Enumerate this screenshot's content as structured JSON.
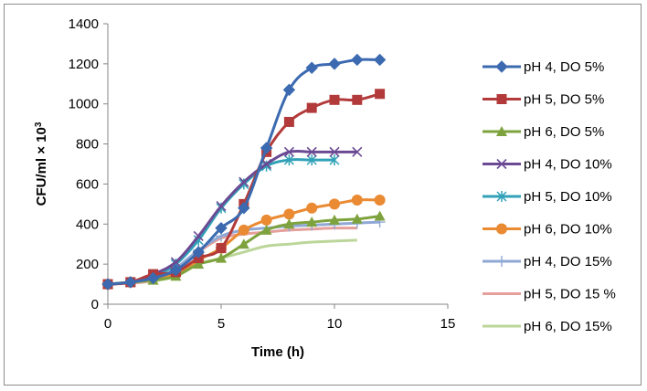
{
  "chart_data": {
    "type": "line",
    "title": "",
    "xlabel": "Time (h)",
    "ylabel_main": "CFU/ml × 10",
    "ylabel_exp": "3",
    "xlim": [
      0,
      15
    ],
    "ylim": [
      0,
      1400
    ],
    "xticks": [
      0,
      5,
      10,
      15
    ],
    "yticks": [
      0,
      200,
      400,
      600,
      800,
      1000,
      1200,
      1400
    ],
    "grid": false,
    "legend_position": "right",
    "series": [
      {
        "name": "pH 4, DO 5%",
        "color": "#3c6ab0",
        "marker": "diamond",
        "x": [
          0,
          1,
          2,
          3,
          4,
          5,
          6,
          7,
          8,
          9,
          10,
          11,
          12
        ],
        "y": [
          100,
          110,
          130,
          170,
          260,
          380,
          480,
          780,
          1070,
          1180,
          1200,
          1220,
          1220
        ]
      },
      {
        "name": "pH 5, DO 5%",
        "color": "#b33a3a",
        "marker": "square",
        "x": [
          0,
          1,
          2,
          3,
          4,
          5,
          6,
          7,
          8,
          9,
          10,
          11,
          12
        ],
        "y": [
          100,
          110,
          150,
          160,
          230,
          280,
          500,
          760,
          910,
          980,
          1020,
          1020,
          1050
        ]
      },
      {
        "name": "pH 6, DO 5%",
        "color": "#7ea33e",
        "marker": "triangle",
        "x": [
          0,
          1,
          2,
          3,
          4,
          5,
          6,
          7,
          8,
          9,
          10,
          11,
          12
        ],
        "y": [
          100,
          110,
          120,
          140,
          200,
          230,
          300,
          370,
          400,
          410,
          420,
          425,
          440
        ]
      },
      {
        "name": "pH 4, DO 10%",
        "color": "#6b4a94",
        "marker": "x",
        "x": [
          0,
          1,
          2,
          3,
          4,
          5,
          6,
          7,
          8,
          9,
          10,
          11
        ],
        "y": [
          100,
          110,
          150,
          210,
          340,
          490,
          610,
          700,
          760,
          760,
          760,
          760
        ]
      },
      {
        "name": "pH 5, DO 10%",
        "color": "#31a1b8",
        "marker": "star",
        "x": [
          0,
          1,
          2,
          3,
          4,
          5,
          6,
          7,
          8,
          9,
          10
        ],
        "y": [
          100,
          110,
          140,
          200,
          320,
          480,
          600,
          690,
          720,
          720,
          720
        ]
      },
      {
        "name": "pH 6, DO 10%",
        "color": "#ea8a32",
        "marker": "circle",
        "x": [
          0,
          1,
          2,
          3,
          4,
          5,
          6,
          7,
          8,
          9,
          10,
          11,
          12
        ],
        "y": [
          100,
          110,
          130,
          150,
          220,
          280,
          370,
          420,
          450,
          480,
          500,
          520,
          520
        ]
      },
      {
        "name": "pH 4, DO 15%",
        "color": "#8fa8d6",
        "marker": "plus",
        "x": [
          0,
          1,
          2,
          3,
          4,
          5,
          6,
          7,
          8,
          9,
          10,
          11,
          12
        ],
        "y": [
          100,
          110,
          130,
          180,
          270,
          340,
          370,
          380,
          390,
          395,
          400,
          405,
          410
        ]
      },
      {
        "name": "pH 5, DO 15 %",
        "color": "#e5a09c",
        "marker": "none",
        "x": [
          0,
          1,
          2,
          3,
          4,
          5,
          6,
          7,
          8,
          9,
          10,
          11
        ],
        "y": [
          100,
          105,
          120,
          170,
          260,
          330,
          350,
          360,
          370,
          375,
          380,
          380
        ]
      },
      {
        "name": "pH 6, DO 15%",
        "color": "#bcd69a",
        "marker": "none",
        "x": [
          0,
          1,
          2,
          3,
          4,
          5,
          6,
          7,
          8,
          9,
          10,
          11
        ],
        "y": [
          100,
          105,
          115,
          140,
          200,
          230,
          260,
          290,
          300,
          310,
          315,
          320
        ]
      }
    ]
  }
}
